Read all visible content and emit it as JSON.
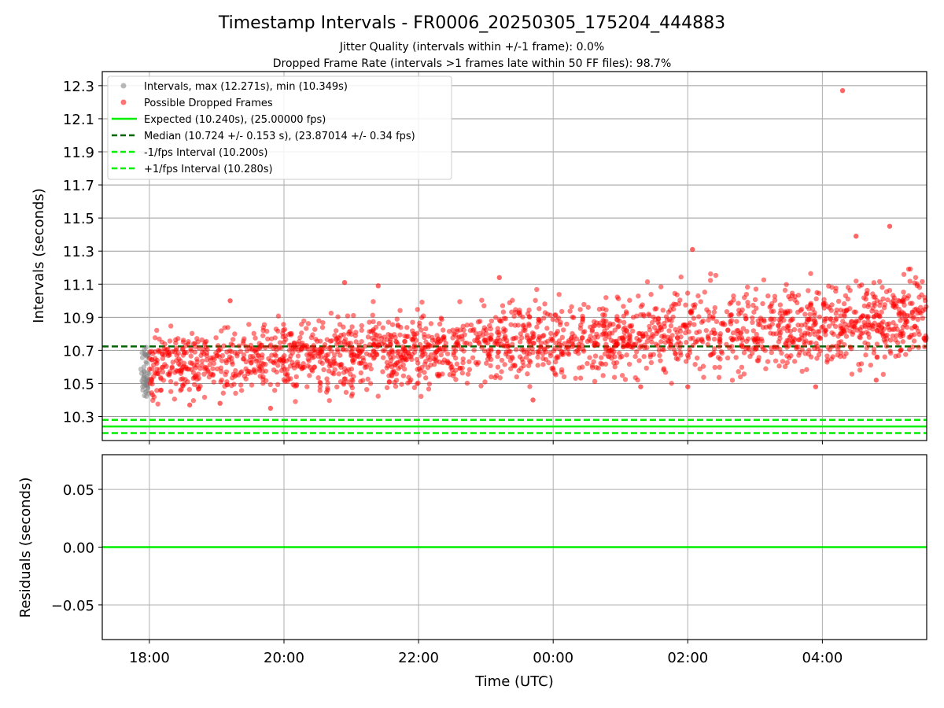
{
  "title": "Timestamp Intervals - FR0006_20250305_175204_444883",
  "subtitle1": "Jitter Quality (intervals within +/-1 frame): 0.0%",
  "subtitle2": "Dropped Frame Rate (intervals >1 frames late within 50 FF files): 98.7%",
  "colors": {
    "intervals": "#808080",
    "dropped": "#ff0000",
    "expected": "#00ee00",
    "median": "#006400",
    "fps_band": "#00ee00",
    "grid": "#b0b0b0"
  },
  "chart_data": [
    {
      "type": "scatter",
      "xlabel": "",
      "ylabel": "Intervals (seconds)",
      "x_unit": "hours since 18:00 UTC (as printed on axis ticks)",
      "xlim": [
        17.3,
        29.55
      ],
      "ylim": [
        10.155,
        12.385
      ],
      "yticks": [
        10.3,
        10.5,
        10.7,
        10.9,
        11.1,
        11.3,
        11.5,
        11.7,
        11.9,
        12.1,
        12.3
      ],
      "ytick_labels": [
        "10.3",
        "10.5",
        "10.7",
        "10.9",
        "11.1",
        "11.3",
        "11.5",
        "11.7",
        "11.9",
        "12.1",
        "12.3"
      ],
      "xticks": [
        18,
        20,
        22,
        24,
        26,
        28
      ],
      "grid": true,
      "legend_position": "top-left",
      "series": [
        {
          "name": "Intervals, max (12.271s), min (10.349s)",
          "kind": "scatter",
          "x_range": [
            17.87,
            18.0
          ],
          "y_range": [
            10.42,
            10.72
          ],
          "sample_points": [
            [
              17.9,
              10.48
            ],
            [
              17.92,
              10.6
            ],
            [
              17.95,
              10.52
            ],
            [
              17.97,
              10.66
            ],
            [
              17.99,
              10.44
            ]
          ]
        },
        {
          "name": "Possible Dropped Frames",
          "kind": "scatter",
          "trend": {
            "x": [
              18.0,
              29.55
            ],
            "y_center": [
              10.6,
              10.9
            ],
            "spread": 0.1
          },
          "outliers": [
            [
              28.3,
              12.27
            ],
            [
              29.0,
              11.45
            ],
            [
              28.5,
              11.39
            ],
            [
              26.07,
              11.31
            ],
            [
              20.9,
              11.11
            ],
            [
              23.2,
              11.14
            ],
            [
              19.2,
              11.0
            ],
            [
              18.6,
              10.37
            ],
            [
              19.05,
              10.38
            ],
            [
              19.8,
              10.35
            ],
            [
              23.7,
              10.4
            ],
            [
              27.9,
              10.48
            ],
            [
              25.3,
              10.48
            ],
            [
              28.8,
              10.52
            ],
            [
              26.0,
              10.48
            ],
            [
              21.4,
              11.09
            ]
          ]
        },
        {
          "name": "Expected (10.240s), (25.00000 fps)",
          "kind": "hline",
          "y": 10.24
        },
        {
          "name": "Median (10.724 +/- 0.153 s), (23.87014 +/- 0.34 fps)",
          "kind": "hline",
          "y": 10.724
        },
        {
          "name": "-1/fps Interval (10.200s)",
          "kind": "hline",
          "y": 10.2
        },
        {
          "name": "+1/fps Interval (10.280s)",
          "kind": "hline",
          "y": 10.28
        }
      ]
    },
    {
      "type": "line",
      "xlabel": "Time (UTC)",
      "ylabel": "Residuals (seconds)",
      "xlim": [
        17.3,
        29.55
      ],
      "ylim": [
        -0.08,
        0.08
      ],
      "yticks": [
        0.05,
        0.0,
        -0.05
      ],
      "ytick_labels": [
        "0.05",
        "0.00",
        "−0.05"
      ],
      "xticks": [
        18,
        20,
        22,
        24,
        26,
        28
      ],
      "xtick_labels": [
        "18:00",
        "20:00",
        "22:00",
        "00:00",
        "02:00",
        "04:00"
      ],
      "grid": true,
      "series": [
        {
          "kind": "hline",
          "y": 0.0
        }
      ]
    }
  ]
}
